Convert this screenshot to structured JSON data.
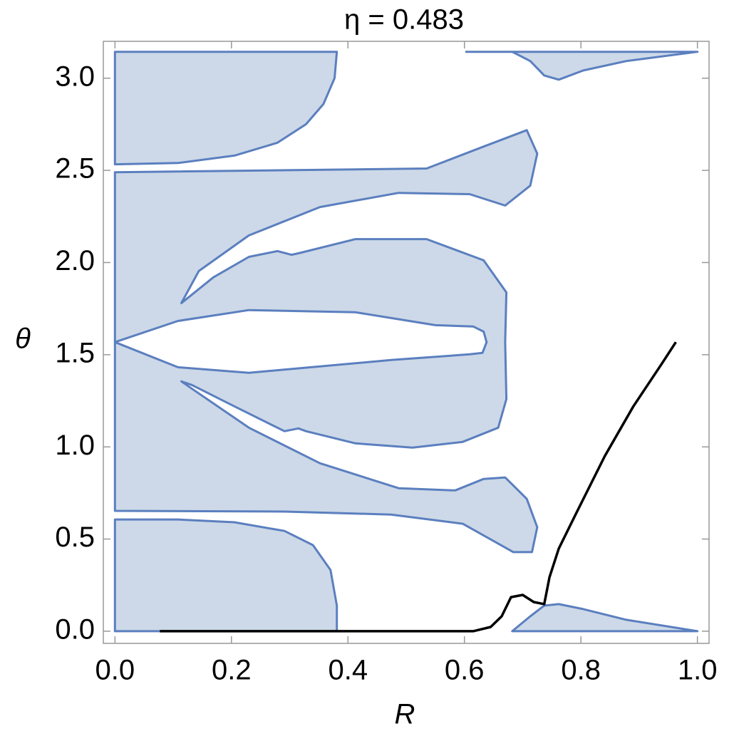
{
  "chart_data": {
    "type": "region",
    "title": "η = 0.483",
    "x_label": "R",
    "y_label": "θ",
    "xlim": [
      -0.02,
      1.02
    ],
    "ylim": [
      -0.066,
      3.2
    ],
    "xticks": [
      {
        "value": 0,
        "label": "0.0"
      },
      0.2,
      0.4,
      0.6,
      0.8,
      {
        "value": 1,
        "label": "1.0"
      }
    ],
    "yticks": [
      {
        "value": 0,
        "label": "0.0"
      },
      0.5,
      {
        "value": 1,
        "label": "1.0"
      },
      1.5,
      {
        "value": 2,
        "label": "2.0"
      },
      2.5,
      {
        "value": 3,
        "label": "3.0"
      }
    ],
    "region_fill": "#cdd9e8",
    "region_edge": "#5b7fbf",
    "regions": [
      {
        "x": [
          0,
          0.381,
          0.377,
          0.358,
          0.328,
          0.279,
          0.205,
          0.108,
          0
        ],
        "y": [
          3.143,
          3.143,
          3.0,
          2.86,
          2.75,
          2.65,
          2.58,
          2.54,
          2.533
        ]
      },
      {
        "x": [
          0,
          0.535,
          0.633,
          0.707,
          0.725,
          0.713,
          0.67,
          0.609,
          0.487,
          0.352,
          0.23,
          0.144,
          0.114,
          0.169,
          0.23,
          0.279,
          0.303,
          0.315,
          0.413,
          0.535,
          0.633,
          0.672,
          0.67,
          0.672,
          0.658,
          0.597,
          0.511,
          0.413,
          0.328,
          0.315,
          0.291,
          0.205,
          0.132,
          0.114,
          0.144,
          0.23,
          0.352,
          0.487,
          0.584,
          0.633,
          0.67,
          0.707,
          0.725,
          0.716,
          0.684,
          0.597,
          0.474,
          0.291,
          0
        ],
        "y": [
          2.49,
          2.51,
          2.629,
          2.718,
          2.591,
          2.417,
          2.309,
          2.371,
          2.378,
          2.301,
          2.147,
          1.954,
          1.78,
          1.92,
          2.031,
          2.062,
          2.042,
          2.05,
          2.127,
          2.127,
          2.012,
          1.838,
          1.568,
          1.259,
          1.104,
          1.027,
          0.996,
          1.019,
          1.085,
          1.1,
          1.085,
          1.22,
          1.336,
          1.355,
          1.29,
          1.104,
          0.911,
          0.776,
          0.764,
          0.826,
          0.834,
          0.718,
          0.564,
          0.429,
          0.429,
          0.583,
          0.633,
          0.649,
          0.653
        ]
      },
      {
        "x": [
          0,
          0.381,
          0.381,
          0.37,
          0.34,
          0.291,
          0.205,
          0.108,
          0
        ],
        "y": [
          0,
          0,
          0.139,
          0.332,
          0.467,
          0.544,
          0.591,
          0.606,
          0.606
        ]
      },
      {
        "x": [
          0.603,
          1.0,
          0.878,
          0.804,
          0.762,
          0.737,
          0.713,
          0.682
        ],
        "y": [
          3.143,
          3.143,
          3.093,
          3.042,
          2.992,
          3.015,
          3.093,
          3.143
        ]
      },
      {
        "x": [
          0.682,
          1.0,
          0.878,
          0.804,
          0.762,
          0.737,
          0.713
        ],
        "y": [
          0,
          0,
          0.062,
          0.12,
          0.147,
          0.139,
          0.081
        ]
      }
    ],
    "holes": [
      {
        "x": [
          0,
          0.108,
          0.23,
          0.413,
          0.55,
          0.615,
          0.633,
          0.638,
          0.631,
          0.609,
          0.474,
          0.23,
          0.108
        ],
        "y": [
          1.568,
          1.683,
          1.742,
          1.73,
          1.66,
          1.653,
          1.625,
          1.568,
          1.51,
          1.502,
          1.471,
          1.402,
          1.432
        ]
      }
    ],
    "curve": {
      "color": "#000000",
      "x": [
        0.077,
        0.615,
        0.645,
        0.664,
        0.68,
        0.7,
        0.719,
        0.737,
        0.746,
        0.762,
        0.792,
        0.841,
        0.89,
        0.939,
        0.963
      ],
      "y": [
        0,
        0,
        0.023,
        0.081,
        0.185,
        0.197,
        0.158,
        0.147,
        0.293,
        0.448,
        0.641,
        0.95,
        1.22,
        1.452,
        1.568
      ]
    }
  }
}
